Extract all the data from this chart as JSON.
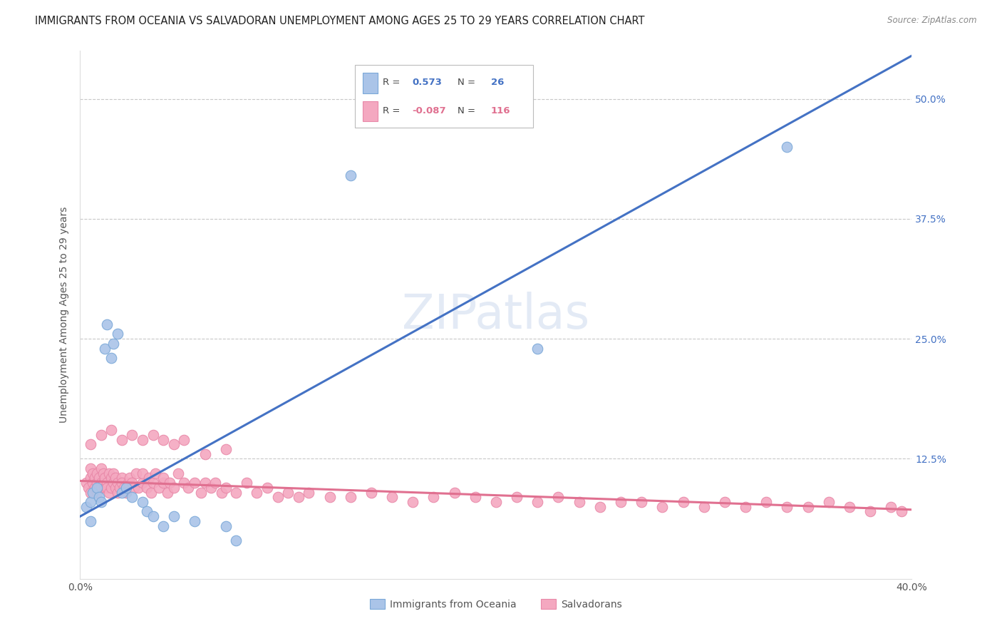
{
  "title": "IMMIGRANTS FROM OCEANIA VS SALVADORAN UNEMPLOYMENT AMONG AGES 25 TO 29 YEARS CORRELATION CHART",
  "source": "Source: ZipAtlas.com",
  "ylabel": "Unemployment Among Ages 25 to 29 years",
  "xlim": [
    0.0,
    0.4
  ],
  "ylim": [
    0.0,
    0.55
  ],
  "xticks": [
    0.0,
    0.1,
    0.2,
    0.3,
    0.4
  ],
  "xticklabels": [
    "0.0%",
    "",
    "",
    "",
    "40.0%"
  ],
  "yticks": [
    0.0,
    0.125,
    0.25,
    0.375,
    0.5
  ],
  "yticklabels_right": [
    "",
    "12.5%",
    "25.0%",
    "37.5%",
    "50.0%"
  ],
  "background_color": "#ffffff",
  "grid_color": "#c8c8c8",
  "oceania_line_color": "#4472c4",
  "salvador_line_color": "#e07090",
  "oceania_point_color": "#aac4e8",
  "salvador_point_color": "#f4a8c0",
  "oceania_point_edge": "#7aa8d8",
  "salvador_point_edge": "#e888a8",
  "oceania_R": "0.573",
  "oceania_N": "26",
  "salvador_R": "-0.087",
  "salvador_N": "116",
  "legend_label_1": "Immigrants from Oceania",
  "legend_label_2": "Salvadorans",
  "title_color": "#222222",
  "source_color": "#888888",
  "axis_label_color": "#555555",
  "tick_color_right": "#4472c4",
  "tick_color_bottom": "#555555",
  "oceania_scatter_x": [
    0.003,
    0.005,
    0.005,
    0.006,
    0.008,
    0.009,
    0.01,
    0.012,
    0.013,
    0.015,
    0.016,
    0.018,
    0.02,
    0.022,
    0.025,
    0.03,
    0.032,
    0.035,
    0.04,
    0.045,
    0.055,
    0.07,
    0.075,
    0.13,
    0.22,
    0.34
  ],
  "oceania_scatter_y": [
    0.075,
    0.08,
    0.06,
    0.09,
    0.095,
    0.085,
    0.08,
    0.24,
    0.265,
    0.23,
    0.245,
    0.255,
    0.09,
    0.095,
    0.085,
    0.08,
    0.07,
    0.065,
    0.055,
    0.065,
    0.06,
    0.055,
    0.04,
    0.42,
    0.24,
    0.45
  ],
  "salvador_scatter_x": [
    0.003,
    0.004,
    0.005,
    0.005,
    0.005,
    0.006,
    0.006,
    0.007,
    0.007,
    0.008,
    0.008,
    0.008,
    0.009,
    0.009,
    0.01,
    0.01,
    0.01,
    0.011,
    0.011,
    0.012,
    0.012,
    0.013,
    0.013,
    0.014,
    0.014,
    0.015,
    0.015,
    0.016,
    0.016,
    0.017,
    0.017,
    0.018,
    0.018,
    0.019,
    0.02,
    0.02,
    0.021,
    0.022,
    0.023,
    0.024,
    0.025,
    0.026,
    0.027,
    0.028,
    0.03,
    0.03,
    0.032,
    0.033,
    0.034,
    0.035,
    0.036,
    0.038,
    0.04,
    0.04,
    0.042,
    0.043,
    0.045,
    0.047,
    0.05,
    0.052,
    0.055,
    0.058,
    0.06,
    0.063,
    0.065,
    0.068,
    0.07,
    0.075,
    0.08,
    0.085,
    0.09,
    0.095,
    0.1,
    0.105,
    0.11,
    0.12,
    0.13,
    0.14,
    0.15,
    0.16,
    0.17,
    0.18,
    0.19,
    0.2,
    0.21,
    0.22,
    0.23,
    0.24,
    0.25,
    0.26,
    0.27,
    0.28,
    0.29,
    0.3,
    0.31,
    0.32,
    0.33,
    0.34,
    0.35,
    0.36,
    0.37,
    0.38,
    0.39,
    0.395,
    0.005,
    0.01,
    0.015,
    0.02,
    0.025,
    0.03,
    0.035,
    0.04,
    0.045,
    0.05,
    0.06,
    0.07
  ],
  "salvador_scatter_y": [
    0.1,
    0.095,
    0.105,
    0.09,
    0.115,
    0.1,
    0.11,
    0.095,
    0.105,
    0.1,
    0.09,
    0.11,
    0.095,
    0.105,
    0.1,
    0.095,
    0.115,
    0.1,
    0.11,
    0.095,
    0.105,
    0.1,
    0.095,
    0.11,
    0.09,
    0.105,
    0.095,
    0.1,
    0.11,
    0.095,
    0.105,
    0.1,
    0.09,
    0.095,
    0.105,
    0.1,
    0.095,
    0.09,
    0.1,
    0.105,
    0.1,
    0.095,
    0.11,
    0.095,
    0.1,
    0.11,
    0.095,
    0.105,
    0.09,
    0.1,
    0.11,
    0.095,
    0.1,
    0.105,
    0.09,
    0.1,
    0.095,
    0.11,
    0.1,
    0.095,
    0.1,
    0.09,
    0.1,
    0.095,
    0.1,
    0.09,
    0.095,
    0.09,
    0.1,
    0.09,
    0.095,
    0.085,
    0.09,
    0.085,
    0.09,
    0.085,
    0.085,
    0.09,
    0.085,
    0.08,
    0.085,
    0.09,
    0.085,
    0.08,
    0.085,
    0.08,
    0.085,
    0.08,
    0.075,
    0.08,
    0.08,
    0.075,
    0.08,
    0.075,
    0.08,
    0.075,
    0.08,
    0.075,
    0.075,
    0.08,
    0.075,
    0.07,
    0.075,
    0.07,
    0.14,
    0.15,
    0.155,
    0.145,
    0.15,
    0.145,
    0.15,
    0.145,
    0.14,
    0.145,
    0.13,
    0.135
  ],
  "oceania_line_intercept": 0.065,
  "oceania_line_slope": 1.2,
  "salvador_line_intercept": 0.102,
  "salvador_line_slope": -0.075
}
